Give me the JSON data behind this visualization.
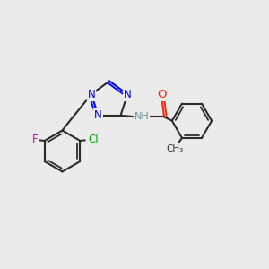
{
  "bg_color": "#ebebeb",
  "bond_color": "#2a2a2a",
  "bond_width": 1.5,
  "atom_colors": {
    "N": "#0000ff",
    "O": "#ff2200",
    "F": "#cc00cc",
    "Cl": "#00aa00",
    "C": "#2a2a2a",
    "H": "#6a9a9a"
  },
  "font_size": 8.5
}
